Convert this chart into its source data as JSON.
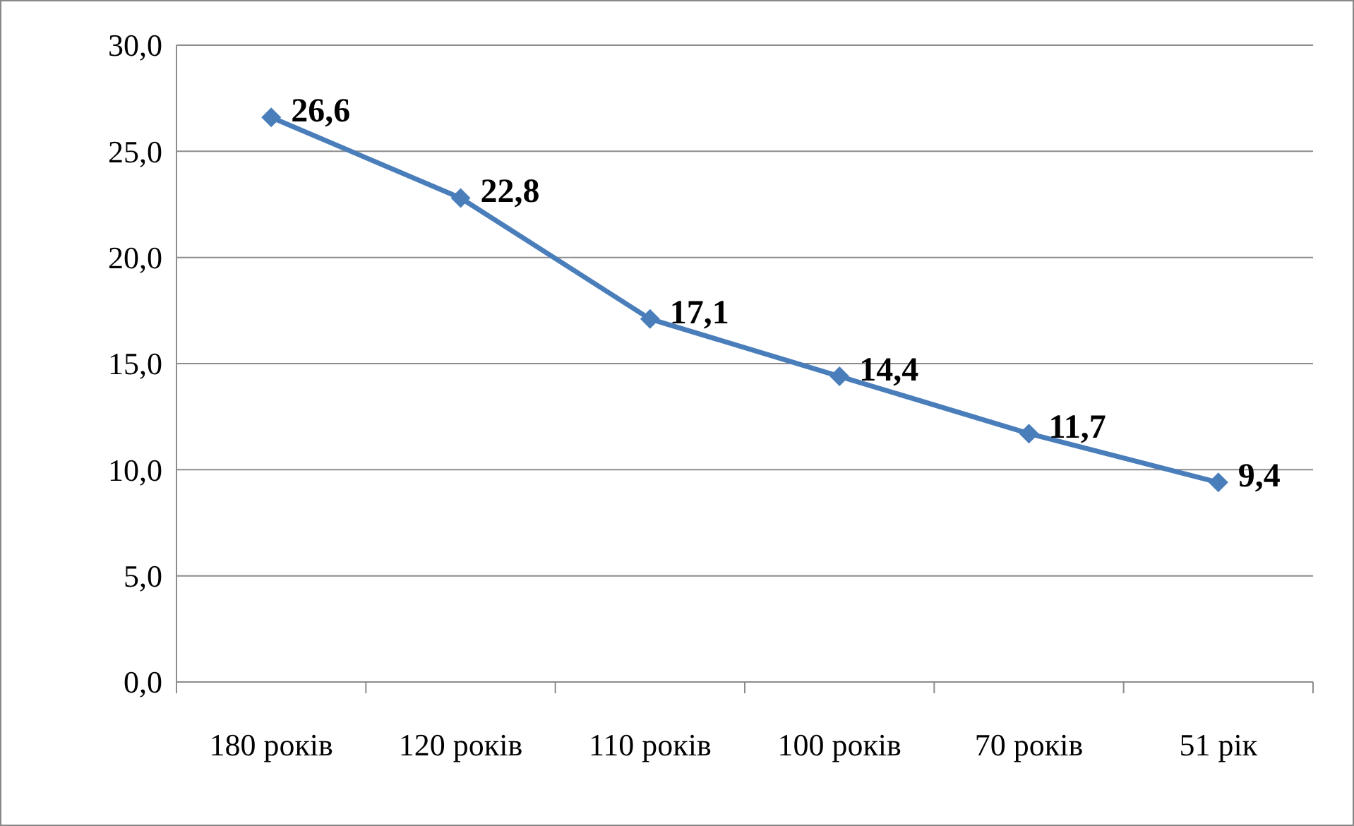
{
  "chart_data": {
    "type": "line",
    "categories": [
      "180 років",
      "120 років",
      "110 років",
      "100 років",
      "70 років",
      "51 рік"
    ],
    "series": [
      {
        "color": "#4a7ebb",
        "values": [
          26.6,
          22.8,
          17.1,
          14.4,
          11.7,
          9.4
        ],
        "value_labels": [
          "26,6",
          "22,8",
          "17,1",
          "14,4",
          "11,7",
          "9,4"
        ]
      }
    ],
    "ylim": [
      0,
      30
    ],
    "yticks": [
      {
        "value": 0,
        "label": "0,0"
      },
      {
        "value": 5,
        "label": "5,0"
      },
      {
        "value": 10,
        "label": "10,0"
      },
      {
        "value": 15,
        "label": "15,0"
      },
      {
        "value": 20,
        "label": "20,0"
      },
      {
        "value": 25,
        "label": "25,0"
      },
      {
        "value": 30,
        "label": "30,0"
      }
    ],
    "grid": "y",
    "marker": "diamond",
    "line_style": "solid"
  }
}
